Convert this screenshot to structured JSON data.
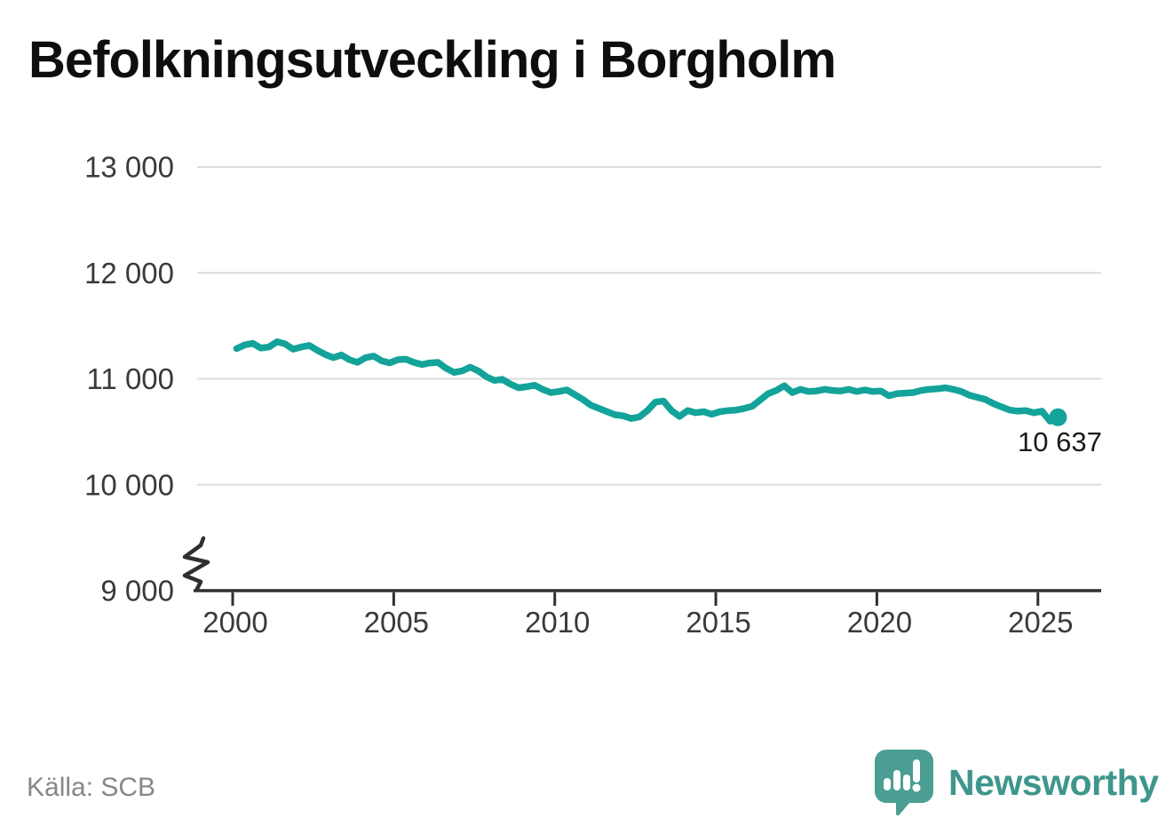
{
  "title": "Befolkningsutveckling i Borgholm",
  "source": "Källa: SCB",
  "brand": {
    "name": "Newsworthy",
    "icon": "speech-bubble-bar-chart-icon",
    "wordmark_color": "#3e968c",
    "mark_color": "#4a9e94"
  },
  "colors": {
    "line": "#13a39a",
    "grid": "#dcdcdc",
    "axis": "#2f2f2f",
    "tick_label": "#3a3a3a",
    "end_label": "#1a1a1a",
    "background": "#ffffff"
  },
  "chart_data": {
    "type": "line",
    "title": "Befolkningsutveckling i Borgholm",
    "xlabel": "",
    "ylabel": "",
    "legend": "none",
    "grid": "horizontal",
    "ylim": [
      9000,
      13000
    ],
    "axis_break": true,
    "x_ticks": [
      2000,
      2005,
      2010,
      2015,
      2020,
      2025
    ],
    "x_tick_labels": [
      "2000",
      "2005",
      "2010",
      "2015",
      "2020",
      "2025"
    ],
    "y_ticks": [
      9000,
      10000,
      11000,
      12000,
      13000
    ],
    "y_tick_labels": [
      "9 000",
      "10 000",
      "11 000",
      "12 000",
      "13 000"
    ],
    "last_value": 10637,
    "last_value_label": "10 637",
    "x": [
      2000.125,
      2000.375,
      2000.625,
      2000.875,
      2001.125,
      2001.375,
      2001.625,
      2001.875,
      2002.125,
      2002.375,
      2002.625,
      2002.875,
      2003.125,
      2003.375,
      2003.625,
      2003.875,
      2004.125,
      2004.375,
      2004.625,
      2004.875,
      2005.125,
      2005.375,
      2005.625,
      2005.875,
      2006.125,
      2006.375,
      2006.625,
      2006.875,
      2007.125,
      2007.375,
      2007.625,
      2007.875,
      2008.125,
      2008.375,
      2008.625,
      2008.875,
      2009.125,
      2009.375,
      2009.625,
      2009.875,
      2010.125,
      2010.375,
      2010.625,
      2010.875,
      2011.125,
      2011.375,
      2011.625,
      2011.875,
      2012.125,
      2012.375,
      2012.625,
      2012.875,
      2013.125,
      2013.375,
      2013.625,
      2013.875,
      2014.125,
      2014.375,
      2014.625,
      2014.875,
      2015.125,
      2015.375,
      2015.625,
      2015.875,
      2016.125,
      2016.375,
      2016.625,
      2016.875,
      2017.125,
      2017.375,
      2017.625,
      2017.875,
      2018.125,
      2018.375,
      2018.625,
      2018.875,
      2019.125,
      2019.375,
      2019.625,
      2019.875,
      2020.125,
      2020.375,
      2020.625,
      2020.875,
      2021.125,
      2021.375,
      2021.625,
      2021.875,
      2022.125,
      2022.375,
      2022.625,
      2022.875,
      2023.125,
      2023.375,
      2023.625,
      2023.875,
      2024.125,
      2024.375,
      2024.625,
      2024.875,
      2025.125,
      2025.375,
      2025.625
    ],
    "series": [
      {
        "name": "Befolkning i Borgholm",
        "values": [
          11285,
          11320,
          11335,
          11290,
          11300,
          11350,
          11330,
          11280,
          11300,
          11315,
          11270,
          11230,
          11200,
          11225,
          11180,
          11155,
          11200,
          11215,
          11170,
          11150,
          11180,
          11185,
          11155,
          11135,
          11150,
          11155,
          11100,
          11060,
          11075,
          11110,
          11075,
          11020,
          10985,
          10995,
          10950,
          10915,
          10925,
          10940,
          10900,
          10870,
          10880,
          10895,
          10850,
          10805,
          10750,
          10720,
          10690,
          10660,
          10650,
          10625,
          10640,
          10700,
          10780,
          10790,
          10700,
          10645,
          10700,
          10680,
          10690,
          10665,
          10690,
          10700,
          10705,
          10720,
          10740,
          10800,
          10860,
          10890,
          10935,
          10870,
          10900,
          10880,
          10885,
          10900,
          10890,
          10885,
          10900,
          10880,
          10895,
          10880,
          10885,
          10840,
          10860,
          10865,
          10870,
          10890,
          10900,
          10905,
          10915,
          10900,
          10880,
          10845,
          10825,
          10805,
          10765,
          10735,
          10705,
          10695,
          10700,
          10680,
          10695,
          10600,
          10637
        ]
      }
    ]
  }
}
